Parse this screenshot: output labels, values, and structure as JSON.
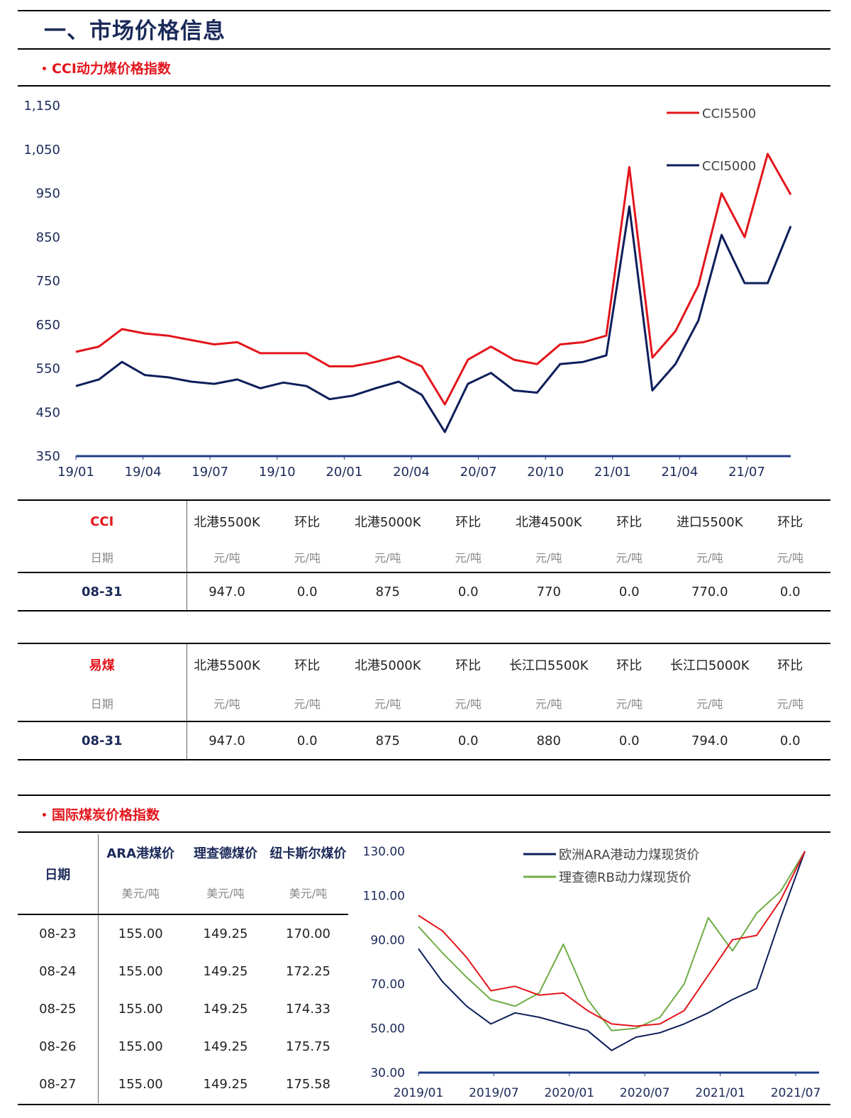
{
  "page_title": "一、市场价格信息",
  "section1": {
    "bullet": "•",
    "title": "CCI动力煤价格指数"
  },
  "section2": {
    "bullet": "•",
    "title": "国际煤炭价格指数"
  },
  "cci_table": {
    "columns": [
      "CCI",
      "北港5500K",
      "环比",
      "北港5000K",
      "环比",
      "北港4500K",
      "环比",
      "进口5500K",
      "环比"
    ],
    "units": [
      "日期",
      "元/吨",
      "元/吨",
      "元/吨",
      "元/吨",
      "元/吨",
      "元/吨",
      "元/吨",
      "元/吨"
    ],
    "row": [
      "08-31",
      "947.0",
      "0.0",
      "875",
      "0.0",
      "770",
      "0.0",
      "770.0",
      "0.0"
    ]
  },
  "yimei_table": {
    "columns": [
      "易煤",
      "北港5500K",
      "环比",
      "北港5000K",
      "环比",
      "长江口5500K",
      "环比",
      "长江口5000K",
      "环比"
    ],
    "units": [
      "日期",
      "元/吨",
      "元/吨",
      "元/吨",
      "元/吨",
      "元/吨",
      "元/吨",
      "元/吨",
      "元/吨"
    ],
    "row": [
      "08-31",
      "947.0",
      "0.0",
      "875",
      "0.0",
      "880",
      "0.0",
      "794.0",
      "0.0"
    ]
  },
  "intl_table": {
    "columns": [
      "日期",
      "ARA港煤价",
      "理查德煤价",
      "纽卡斯尔煤价"
    ],
    "units": [
      "",
      "美元/吨",
      "美元/吨",
      "美元/吨"
    ],
    "rows": [
      [
        "08-23",
        "155.00",
        "149.25",
        "170.00"
      ],
      [
        "08-24",
        "155.00",
        "149.25",
        "172.25"
      ],
      [
        "08-25",
        "155.00",
        "149.25",
        "174.33"
      ],
      [
        "08-26",
        "155.00",
        "149.25",
        "175.75"
      ],
      [
        "08-27",
        "155.00",
        "149.25",
        "175.58"
      ]
    ]
  },
  "chart_data": [
    {
      "type": "line",
      "ylim": [
        350,
        1150
      ],
      "yticks": [
        "1,150",
        "1,050",
        "950",
        "850",
        "750",
        "650",
        "550",
        "450",
        "350"
      ],
      "xticks": [
        "19/01",
        "19/04",
        "19/07",
        "19/10",
        "20/01",
        "20/04",
        "20/07",
        "20/10",
        "21/01",
        "21/04",
        "21/07"
      ],
      "legend_position": "top-right",
      "x": [
        "19/01",
        "19/02",
        "19/03",
        "19/04",
        "19/05",
        "19/06",
        "19/07",
        "19/08",
        "19/09",
        "19/10",
        "19/11",
        "19/12",
        "20/01",
        "20/02",
        "20/03",
        "20/04",
        "20/05",
        "20/06",
        "20/07",
        "20/08",
        "20/09",
        "20/10",
        "20/11",
        "20/12",
        "21/01",
        "21/02",
        "21/03",
        "21/04",
        "21/05",
        "21/06",
        "21/07",
        "21/08"
      ],
      "series": [
        {
          "name": "CCI5500",
          "color": "#e3151c",
          "values": [
            588,
            600,
            640,
            630,
            625,
            615,
            605,
            610,
            585,
            585,
            585,
            555,
            555,
            565,
            578,
            555,
            468,
            570,
            600,
            570,
            560,
            605,
            610,
            625,
            1010,
            575,
            635,
            740,
            950,
            850,
            1040,
            947
          ]
        },
        {
          "name": "CCI5000",
          "color": "#0d1e5a",
          "values": [
            510,
            525,
            565,
            535,
            530,
            520,
            515,
            525,
            505,
            518,
            510,
            480,
            488,
            505,
            520,
            490,
            405,
            515,
            540,
            500,
            495,
            560,
            565,
            580,
            920,
            500,
            560,
            660,
            855,
            745,
            745,
            875
          ]
        }
      ]
    },
    {
      "type": "line",
      "ylim": [
        30,
        130
      ],
      "yticks": [
        "130.00",
        "110.00",
        "90.00",
        "70.00",
        "50.00",
        "30.00"
      ],
      "xticks": [
        "2019/01",
        "2019/07",
        "2020/01",
        "2020/07",
        "2021/01",
        "2021/07"
      ],
      "legend_position": "top",
      "x": [
        "2019/01",
        "2019/03",
        "2019/05",
        "2019/07",
        "2019/09",
        "2019/11",
        "2020/01",
        "2020/03",
        "2020/05",
        "2020/07",
        "2020/09",
        "2020/11",
        "2021/01",
        "2021/03",
        "2021/05",
        "2021/07",
        "2021/08"
      ],
      "series": [
        {
          "name": "欧洲ARA港动力煤现货价",
          "color": "#0d1e5a",
          "values": [
            86,
            71,
            60,
            52,
            57,
            55,
            52,
            49,
            40,
            46,
            48,
            52,
            57,
            63,
            68,
            100,
            130
          ]
        },
        {
          "name": "理查德RB动力煤现货价",
          "color": "#70ad47",
          "values": [
            96,
            84,
            73,
            63,
            60,
            66,
            88,
            63,
            49,
            50,
            55,
            70,
            100,
            85,
            102,
            112,
            130
          ]
        },
        {
          "color": "#e3151c",
          "values": [
            101,
            94,
            82,
            67,
            69,
            65,
            66,
            58,
            52,
            51,
            52,
            58,
            74,
            90,
            92,
            108,
            130
          ]
        }
      ]
    }
  ]
}
